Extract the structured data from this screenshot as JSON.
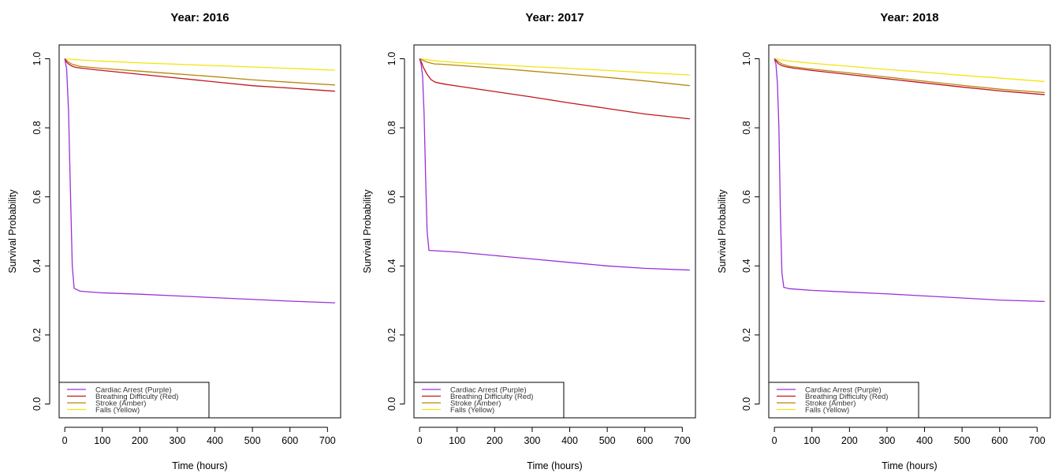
{
  "chart_data": [
    {
      "type": "line",
      "title": "Year: 2016",
      "xlabel": "Time (hours)",
      "ylabel": "Survival Probability",
      "xlim": [
        -15,
        735
      ],
      "ylim": [
        -0.04,
        1.04
      ],
      "x_ticks": [
        0,
        100,
        200,
        300,
        400,
        500,
        600,
        700
      ],
      "y_ticks": [
        0.0,
        0.2,
        0.4,
        0.6,
        0.8,
        1.0
      ],
      "legend_position": "bottom-left",
      "grid": false,
      "series": [
        {
          "name": "Cardiac Arrest (Purple)",
          "color": "#9b30d9",
          "x": [
            0,
            5,
            10,
            15,
            20,
            25,
            40,
            60,
            100,
            200,
            300,
            400,
            500,
            600,
            720
          ],
          "y": [
            1.0,
            0.97,
            0.85,
            0.62,
            0.4,
            0.335,
            0.327,
            0.325,
            0.322,
            0.318,
            0.313,
            0.308,
            0.303,
            0.298,
            0.293
          ]
        },
        {
          "name": "Breathing Difficulty (Red)",
          "color": "#c0161e",
          "x": [
            0,
            5,
            10,
            20,
            30,
            50,
            100,
            200,
            300,
            400,
            500,
            600,
            720
          ],
          "y": [
            1.0,
            0.99,
            0.985,
            0.978,
            0.975,
            0.972,
            0.966,
            0.955,
            0.944,
            0.933,
            0.922,
            0.915,
            0.906
          ]
        },
        {
          "name": "Stroke (Amber)",
          "color": "#b8860b",
          "x": [
            0,
            10,
            20,
            40,
            70,
            100,
            200,
            300,
            400,
            500,
            600,
            720
          ],
          "y": [
            1.0,
            0.99,
            0.984,
            0.978,
            0.975,
            0.972,
            0.964,
            0.956,
            0.948,
            0.939,
            0.932,
            0.924
          ]
        },
        {
          "name": "Falls (Yellow)",
          "color": "#f2e60a",
          "x": [
            0,
            20,
            50,
            100,
            200,
            300,
            400,
            500,
            600,
            720
          ],
          "y": [
            1.0,
            0.998,
            0.996,
            0.993,
            0.988,
            0.984,
            0.98,
            0.976,
            0.972,
            0.967
          ]
        }
      ]
    },
    {
      "type": "line",
      "title": "Year: 2017",
      "xlabel": "Time (hours)",
      "ylabel": "Survival Probability",
      "xlim": [
        -15,
        735
      ],
      "ylim": [
        -0.04,
        1.04
      ],
      "x_ticks": [
        0,
        100,
        200,
        300,
        400,
        500,
        600,
        700
      ],
      "y_ticks": [
        0.0,
        0.2,
        0.4,
        0.6,
        0.8,
        1.0
      ],
      "legend_position": "bottom-left",
      "grid": false,
      "series": [
        {
          "name": "Cardiac Arrest (Purple)",
          "color": "#9b30d9",
          "x": [
            0,
            4,
            8,
            12,
            16,
            20,
            25,
            40,
            100,
            200,
            300,
            400,
            500,
            600,
            720
          ],
          "y": [
            1.0,
            0.985,
            0.95,
            0.84,
            0.66,
            0.5,
            0.445,
            0.444,
            0.44,
            0.43,
            0.42,
            0.41,
            0.4,
            0.393,
            0.388
          ]
        },
        {
          "name": "Breathing Difficulty (Red)",
          "color": "#c0161e",
          "x": [
            0,
            5,
            10,
            20,
            30,
            40,
            50,
            70,
            100,
            200,
            300,
            400,
            500,
            600,
            720
          ],
          "y": [
            1.0,
            0.99,
            0.975,
            0.955,
            0.94,
            0.933,
            0.93,
            0.926,
            0.921,
            0.905,
            0.889,
            0.872,
            0.856,
            0.84,
            0.826
          ]
        },
        {
          "name": "Stroke (Amber)",
          "color": "#b8860b",
          "x": [
            0,
            10,
            20,
            40,
            60,
            100,
            200,
            300,
            400,
            500,
            600,
            720
          ],
          "y": [
            1.0,
            0.995,
            0.99,
            0.985,
            0.984,
            0.981,
            0.973,
            0.964,
            0.955,
            0.946,
            0.936,
            0.922
          ]
        },
        {
          "name": "Falls (Yellow)",
          "color": "#f2e60a",
          "x": [
            0,
            20,
            50,
            100,
            200,
            300,
            400,
            500,
            600,
            720
          ],
          "y": [
            1.0,
            0.997,
            0.993,
            0.989,
            0.983,
            0.977,
            0.972,
            0.966,
            0.96,
            0.953
          ]
        }
      ]
    },
    {
      "type": "line",
      "title": "Year: 2018",
      "xlabel": "Time (hours)",
      "ylabel": "Survival Probability",
      "xlim": [
        -15,
        735
      ],
      "ylim": [
        -0.04,
        1.04
      ],
      "x_ticks": [
        0,
        100,
        200,
        300,
        400,
        500,
        600,
        700
      ],
      "y_ticks": [
        0.0,
        0.2,
        0.4,
        0.6,
        0.8,
        1.0
      ],
      "legend_position": "bottom-left",
      "grid": false,
      "series": [
        {
          "name": "Cardiac Arrest (Purple)",
          "color": "#9b30d9",
          "x": [
            0,
            4,
            8,
            12,
            16,
            20,
            25,
            40,
            100,
            200,
            300,
            400,
            500,
            600,
            720
          ],
          "y": [
            1.0,
            0.985,
            0.93,
            0.8,
            0.55,
            0.38,
            0.338,
            0.334,
            0.329,
            0.324,
            0.319,
            0.313,
            0.307,
            0.301,
            0.297
          ]
        },
        {
          "name": "Breathing Difficulty (Red)",
          "color": "#c0161e",
          "x": [
            0,
            5,
            10,
            20,
            30,
            50,
            100,
            200,
            300,
            400,
            500,
            600,
            720
          ],
          "y": [
            1.0,
            0.993,
            0.986,
            0.98,
            0.977,
            0.973,
            0.966,
            0.954,
            0.942,
            0.93,
            0.918,
            0.907,
            0.896
          ]
        },
        {
          "name": "Stroke (Amber)",
          "color": "#b8860b",
          "x": [
            0,
            10,
            20,
            40,
            70,
            100,
            200,
            300,
            400,
            500,
            600,
            720
          ],
          "y": [
            1.0,
            0.992,
            0.985,
            0.978,
            0.974,
            0.97,
            0.959,
            0.947,
            0.935,
            0.923,
            0.912,
            0.902
          ]
        },
        {
          "name": "Falls (Yellow)",
          "color": "#f2e60a",
          "x": [
            0,
            20,
            50,
            100,
            200,
            300,
            400,
            500,
            600,
            720
          ],
          "y": [
            1.0,
            0.996,
            0.992,
            0.987,
            0.978,
            0.969,
            0.961,
            0.952,
            0.944,
            0.934
          ]
        }
      ]
    }
  ]
}
